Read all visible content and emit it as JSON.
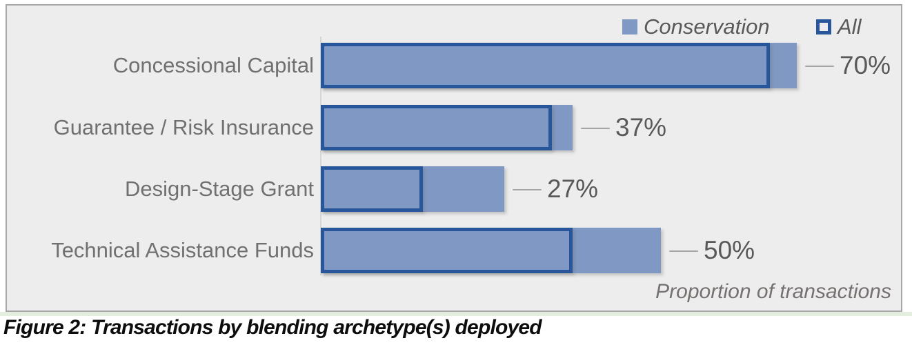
{
  "figure_caption": "Figure 2: Transactions by blending archetype(s) deployed",
  "chart_data": {
    "type": "bar",
    "orientation": "horizontal",
    "title": "",
    "xlabel": "Proportion of transactions",
    "ylabel": "",
    "categories": [
      "Concessional Capital",
      "Guarantee / Risk Insurance",
      "Design-Stage Grant",
      "Technical Assistance Funds"
    ],
    "series": [
      {
        "name": "Conservation",
        "swatch": "filled-square",
        "values": [
          70,
          37,
          27,
          50
        ],
        "data_labels": [
          "70%",
          "37%",
          "27%",
          "50%"
        ]
      },
      {
        "name": "All",
        "swatch": "outlined-square",
        "values": [
          66,
          34,
          15,
          37
        ]
      }
    ],
    "xlim": [
      0,
      85
    ],
    "grid": false,
    "legend_position": "top-right",
    "data_labels_on": "Conservation"
  },
  "colors": {
    "bar_fill": "#8099C4",
    "bar_outline": "#27579A",
    "chart_background": "#EDEDED",
    "chart_border": "#A6A6A6",
    "category_label": "#707070",
    "data_label": "#595959",
    "axis_label": "#767171",
    "leader_line": "#A6A6A6",
    "caption_text": "#0D0D0D"
  }
}
